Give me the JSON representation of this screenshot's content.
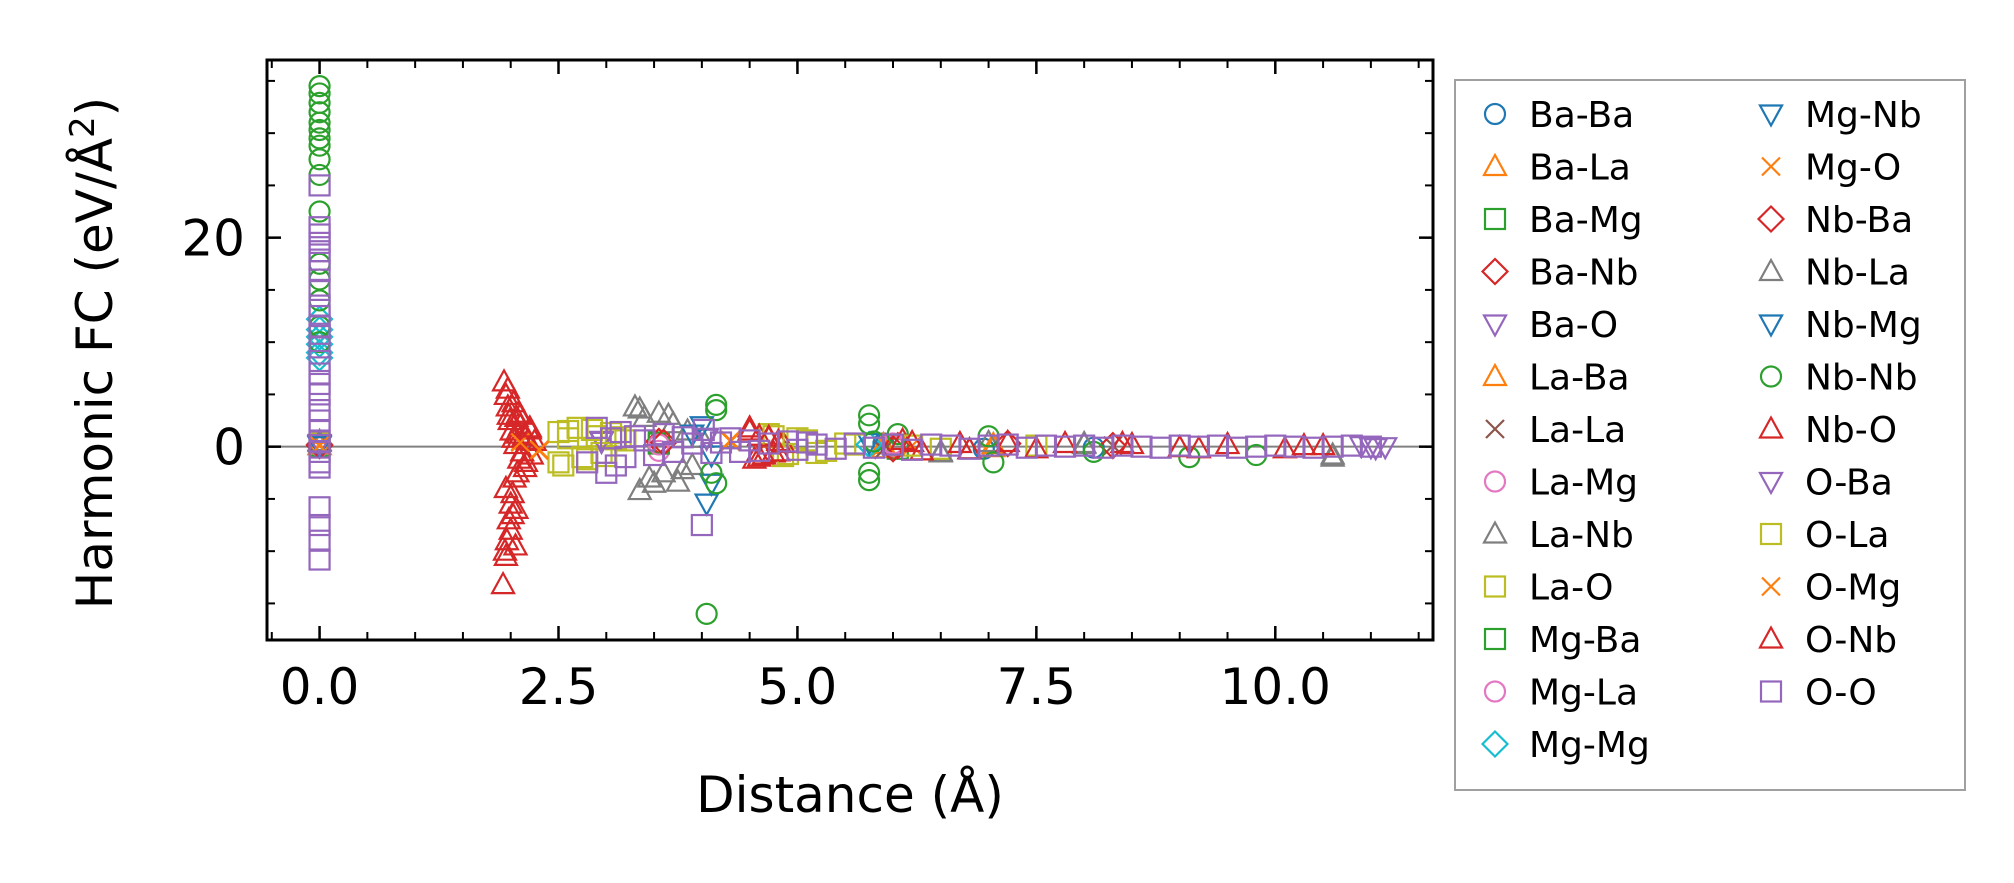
{
  "chart_data": {
    "type": "scatter",
    "title": "",
    "xlabel": "Distance (Å)",
    "ylabel_main": "Harmonic FC (eV/Å",
    "ylabel_sup": "2",
    "ylabel_end": ")",
    "xlim": [
      -0.55,
      11.65
    ],
    "ylim": [
      -18.5,
      37.0
    ],
    "xticks": [
      0.0,
      2.5,
      5.0,
      7.5,
      10.0
    ],
    "xtick_labels": [
      "0.0",
      "2.5",
      "5.0",
      "7.5",
      "10.0"
    ],
    "yticks": [
      0,
      20
    ],
    "ytick_labels": [
      "0",
      "20"
    ],
    "x_minor_step": 0.5,
    "y_minor_step": 5,
    "reference_line_y": 0,
    "legend_position": "outside-right",
    "series": [
      {
        "name": "Ba-Ba",
        "marker": "circle",
        "color": "#1f77b4",
        "x": [
          0.0,
          5.9,
          6.95,
          8.1
        ],
        "y": [
          0.2,
          0.3,
          -0.2,
          -0.1
        ]
      },
      {
        "name": "Ba-La",
        "marker": "triangle-up",
        "color": "#ff7f0e",
        "x": [
          0.0,
          5.9,
          7.05
        ],
        "y": [
          0.1,
          -0.2,
          0.2
        ]
      },
      {
        "name": "Ba-Mg",
        "marker": "square",
        "color": "#2ca02c",
        "x": [
          0.0,
          3.55,
          6.05
        ],
        "y": [
          0.3,
          0.4,
          -0.2
        ]
      },
      {
        "name": "Ba-Nb",
        "marker": "diamond",
        "color": "#d62728",
        "x": [
          0.0,
          3.55,
          6.05
        ],
        "y": [
          0.2,
          0.5,
          0.1
        ]
      },
      {
        "name": "Ba-O",
        "marker": "triangle-down",
        "color": "#9467bd",
        "x": [
          0.0,
          2.95,
          4.05,
          11.0
        ],
        "y": [
          0.2,
          0.5,
          0.8,
          0.0
        ]
      },
      {
        "name": "La-Ba",
        "marker": "triangle-up",
        "color": "#ff7f0e",
        "x": [
          0.0,
          5.9,
          7.05
        ],
        "y": [
          0.1,
          0.2,
          -0.1
        ]
      },
      {
        "name": "La-La",
        "marker": "x",
        "color": "#8c564b",
        "x": [
          0.0,
          5.9,
          8.3
        ],
        "y": [
          0.1,
          -0.3,
          0.1
        ]
      },
      {
        "name": "La-Mg",
        "marker": "circle",
        "color": "#e377c2",
        "x": [
          0.0,
          3.55,
          6.0
        ],
        "y": [
          0.2,
          -0.4,
          0.1
        ]
      },
      {
        "name": "La-Nb",
        "marker": "triangle-up",
        "color": "#7f7f7f",
        "x": [
          0.0,
          3.3,
          3.35,
          3.4,
          3.45,
          3.55,
          3.6,
          3.7,
          3.75,
          3.85,
          3.9,
          4.0,
          6.5,
          7.0,
          8.0,
          10.6
        ],
        "y": [
          0.5,
          3.8,
          -4.2,
          2.8,
          -3.0,
          3.2,
          -2.5,
          2.2,
          -3.4,
          1.5,
          -1.8,
          0.8,
          -0.5,
          0.4,
          0.2,
          -1.0
        ]
      },
      {
        "name": "La-O",
        "marker": "square",
        "color": "#bcbd22",
        "x": [
          0.0,
          2.5,
          2.55,
          2.6,
          2.7,
          2.8,
          2.9,
          3.0,
          3.1,
          3.2,
          4.7,
          4.85,
          5.0,
          5.2,
          5.5,
          6.0,
          6.5,
          7.5
        ],
        "y": [
          0.3,
          1.4,
          -1.8,
          0.8,
          1.8,
          -1.2,
          1.0,
          -0.9,
          0.7,
          0.6,
          1.2,
          -0.9,
          0.8,
          -0.6,
          0.3,
          0.2,
          -0.2,
          0.1
        ]
      },
      {
        "name": "Mg-Ba",
        "marker": "square",
        "color": "#2ca02c",
        "x": [
          0.0,
          3.55,
          6.0
        ],
        "y": [
          0.1,
          0.3,
          0.2
        ]
      },
      {
        "name": "Mg-La",
        "marker": "circle",
        "color": "#e377c2",
        "x": [
          0.0,
          3.55,
          6.0
        ],
        "y": [
          0.1,
          0.2,
          0.3
        ]
      },
      {
        "name": "Mg-Mg",
        "marker": "diamond",
        "color": "#17becf",
        "x": [
          0.0,
          0.0,
          0.0,
          0.0,
          0.0,
          0.0,
          0.0,
          5.75
        ],
        "y": [
          9.0,
          9.8,
          10.5,
          11.2,
          12.2,
          8.5,
          0.1,
          0.2
        ]
      },
      {
        "name": "Mg-Nb",
        "marker": "triangle-down",
        "color": "#1f77b4",
        "x": [
          0.0,
          4.05,
          3.9,
          4.1,
          5.75
        ],
        "y": [
          0.2,
          -5.4,
          1.2,
          -0.8,
          0.4
        ]
      },
      {
        "name": "Mg-O",
        "marker": "x",
        "color": "#ff7f0e",
        "x": [
          0.0,
          2.1,
          2.3,
          4.3,
          6.2
        ],
        "y": [
          0.2,
          0.5,
          -0.4,
          0.6,
          0.1
        ]
      },
      {
        "name": "Nb-Ba",
        "marker": "diamond",
        "color": "#d62728",
        "x": [
          0.0,
          3.6,
          6.0,
          7.2,
          8.3
        ],
        "y": [
          0.1,
          0.4,
          -0.2,
          0.3,
          0.1
        ]
      },
      {
        "name": "Nb-La",
        "marker": "triangle-up",
        "color": "#7f7f7f",
        "x": [
          0.0,
          3.35,
          3.5,
          3.65,
          3.8,
          6.5,
          6.8,
          8.0,
          10.6
        ],
        "y": [
          0.4,
          3.6,
          -3.5,
          3.0,
          -2.2,
          -0.6,
          -0.3,
          0.3,
          -0.8
        ]
      },
      {
        "name": "Nb-Mg",
        "marker": "triangle-down",
        "color": "#1f77b4",
        "x": [
          0.0,
          4.0,
          4.1
        ],
        "y": [
          0.1,
          2.0,
          -3.5
        ]
      },
      {
        "name": "Nb-Nb",
        "marker": "circle",
        "color": "#2ca02c",
        "x": [
          0.0,
          0.0,
          0.0,
          0.0,
          0.0,
          0.0,
          0.0,
          0.0,
          0.0,
          0.0,
          0.0,
          0.0,
          0.0,
          0.0,
          0.0,
          0.0,
          4.05,
          4.15,
          4.15,
          4.15,
          4.1,
          5.75,
          5.75,
          5.75,
          5.75,
          5.8,
          6.05,
          7.0,
          7.05,
          8.1,
          9.1,
          9.8
        ],
        "y": [
          34.5,
          33.8,
          32.9,
          32.0,
          31.0,
          30.3,
          29.5,
          28.8,
          27.5,
          26.0,
          22.5,
          17.5,
          16.0,
          14.0,
          11.5,
          10.0,
          -16.0,
          4.0,
          3.5,
          -3.5,
          -2.5,
          3.0,
          2.2,
          -2.5,
          -3.2,
          0.5,
          1.2,
          1.0,
          -1.5,
          -0.5,
          -1.0,
          -0.8
        ]
      },
      {
        "name": "Nb-O",
        "marker": "triangle-up",
        "color": "#d62728",
        "x": [
          1.92,
          1.93,
          1.94,
          1.95,
          1.96,
          1.97,
          1.98,
          1.99,
          2.0,
          2.01,
          2.02,
          2.03,
          2.04,
          2.05,
          2.06,
          2.07,
          2.08,
          2.09,
          2.1,
          2.12,
          2.14,
          2.16,
          2.18,
          2.2,
          2.22,
          2.25,
          1.95,
          1.98,
          2.02,
          2.05,
          2.08,
          4.5,
          4.55,
          4.6,
          4.65,
          4.7,
          4.75,
          4.8,
          4.85,
          6.1,
          6.3,
          6.7,
          7.2,
          7.5,
          8.4,
          9.0,
          9.5,
          10.1,
          10.5
        ],
        "y": [
          -13.2,
          6.2,
          -10.0,
          4.9,
          -9.0,
          3.8,
          -7.0,
          2.5,
          -5.5,
          1.5,
          -4.5,
          0.8,
          -3.0,
          0.2,
          2.8,
          -2.5,
          1.2,
          -1.2,
          2.0,
          -0.5,
          1.0,
          -1.5,
          0.6,
          1.6,
          -0.8,
          0.5,
          -4.0,
          3.0,
          -6.5,
          -9.5,
          3.2,
          1.8,
          -1.2,
          1.0,
          -0.8,
          0.8,
          -0.6,
          0.5,
          0.3,
          0.6,
          -0.4,
          0.3,
          0.4,
          -0.2,
          0.3,
          -0.1,
          0.2,
          -0.2,
          0.1
        ]
      },
      {
        "name": "O-Ba",
        "marker": "triangle-down",
        "color": "#9467bd",
        "x": [
          0.0,
          2.95,
          4.05,
          10.9,
          11.05,
          11.15
        ],
        "y": [
          0.3,
          0.6,
          0.9,
          0.1,
          -0.1,
          0.0
        ]
      },
      {
        "name": "O-La",
        "marker": "square",
        "color": "#bcbd22",
        "x": [
          2.5,
          2.6,
          2.75,
          2.85,
          2.95,
          3.05,
          3.15,
          4.75,
          4.9,
          5.1,
          5.3,
          5.6,
          6.2
        ],
        "y": [
          -1.5,
          1.5,
          -1.0,
          1.6,
          -0.6,
          1.3,
          0.9,
          1.0,
          -0.7,
          0.6,
          -0.4,
          0.2,
          0.1
        ]
      },
      {
        "name": "O-Mg",
        "marker": "x",
        "color": "#ff7f0e",
        "x": [
          0.0,
          2.1,
          2.3,
          4.3
        ],
        "y": [
          0.1,
          0.4,
          -0.3,
          0.5
        ]
      },
      {
        "name": "O-Nb",
        "marker": "triangle-up",
        "color": "#d62728",
        "x": [
          1.95,
          1.97,
          2.0,
          2.03,
          2.06,
          2.1,
          2.15,
          2.2,
          4.5,
          4.6,
          4.7,
          4.8,
          6.2,
          6.8,
          7.8,
          8.5,
          9.2,
          10.3
        ],
        "y": [
          -10.5,
          5.5,
          -8.0,
          4.2,
          -6.0,
          3.0,
          -2.0,
          1.8,
          1.5,
          -1.0,
          0.9,
          -0.5,
          0.4,
          -0.3,
          0.3,
          0.2,
          -0.2,
          0.1
        ]
      },
      {
        "name": "O-O",
        "marker": "square",
        "color": "#9467bd",
        "x": [
          0.0,
          0.0,
          0.0,
          0.0,
          0.0,
          0.0,
          0.0,
          0.0,
          0.0,
          0.0,
          0.0,
          0.0,
          0.0,
          0.0,
          0.0,
          0.0,
          0.0,
          0.0,
          0.0,
          0.0,
          0.0,
          0.0,
          0.0,
          0.0,
          0.0,
          0.0,
          0.0,
          0.0,
          2.8,
          2.9,
          3.0,
          3.05,
          3.1,
          3.15,
          3.2,
          3.3,
          3.4,
          3.5,
          3.6,
          3.7,
          3.8,
          3.9,
          4.0,
          4.02,
          4.1,
          4.2,
          4.3,
          4.4,
          4.5,
          4.6,
          4.7,
          4.9,
          5.0,
          5.1,
          5.2,
          5.4,
          5.6,
          5.8,
          6.0,
          6.2,
          6.4,
          6.6,
          6.8,
          7.0,
          7.2,
          7.4,
          7.6,
          7.8,
          8.0,
          8.2,
          8.4,
          8.6,
          8.8,
          9.0,
          9.2,
          9.4,
          9.6,
          9.8,
          10.0,
          10.2,
          10.4,
          10.6,
          10.8,
          11.0
        ],
        "y": [
          25.0,
          21.0,
          20.3,
          19.5,
          18.7,
          17.9,
          16.8,
          15.0,
          13.5,
          12.5,
          11.5,
          10.8,
          9.5,
          8.2,
          7.0,
          6.0,
          5.0,
          3.5,
          2.5,
          1.5,
          0.5,
          -0.5,
          -1.5,
          -2.0,
          -5.8,
          -7.5,
          -9.0,
          -10.8,
          -1.5,
          1.8,
          -2.5,
          0.8,
          -1.8,
          1.4,
          -1.0,
          1.0,
          0.6,
          -0.8,
          1.2,
          -0.5,
          0.9,
          0.3,
          -7.5,
          1.6,
          -0.6,
          0.4,
          0.8,
          -0.5,
          0.6,
          -0.4,
          0.3,
          0.5,
          -0.3,
          0.4,
          0.2,
          -0.2,
          0.3,
          -0.1,
          0.2,
          -0.3,
          0.2,
          0.1,
          -0.2,
          0.1,
          0.2,
          -0.1,
          0.1,
          0.0,
          0.1,
          -0.1,
          0.1,
          0.0,
          -0.1,
          0.1,
          0.0,
          0.1,
          -0.1,
          0.0,
          0.1,
          0.0,
          -0.1,
          0.0,
          0.1,
          0.0
        ]
      }
    ]
  }
}
